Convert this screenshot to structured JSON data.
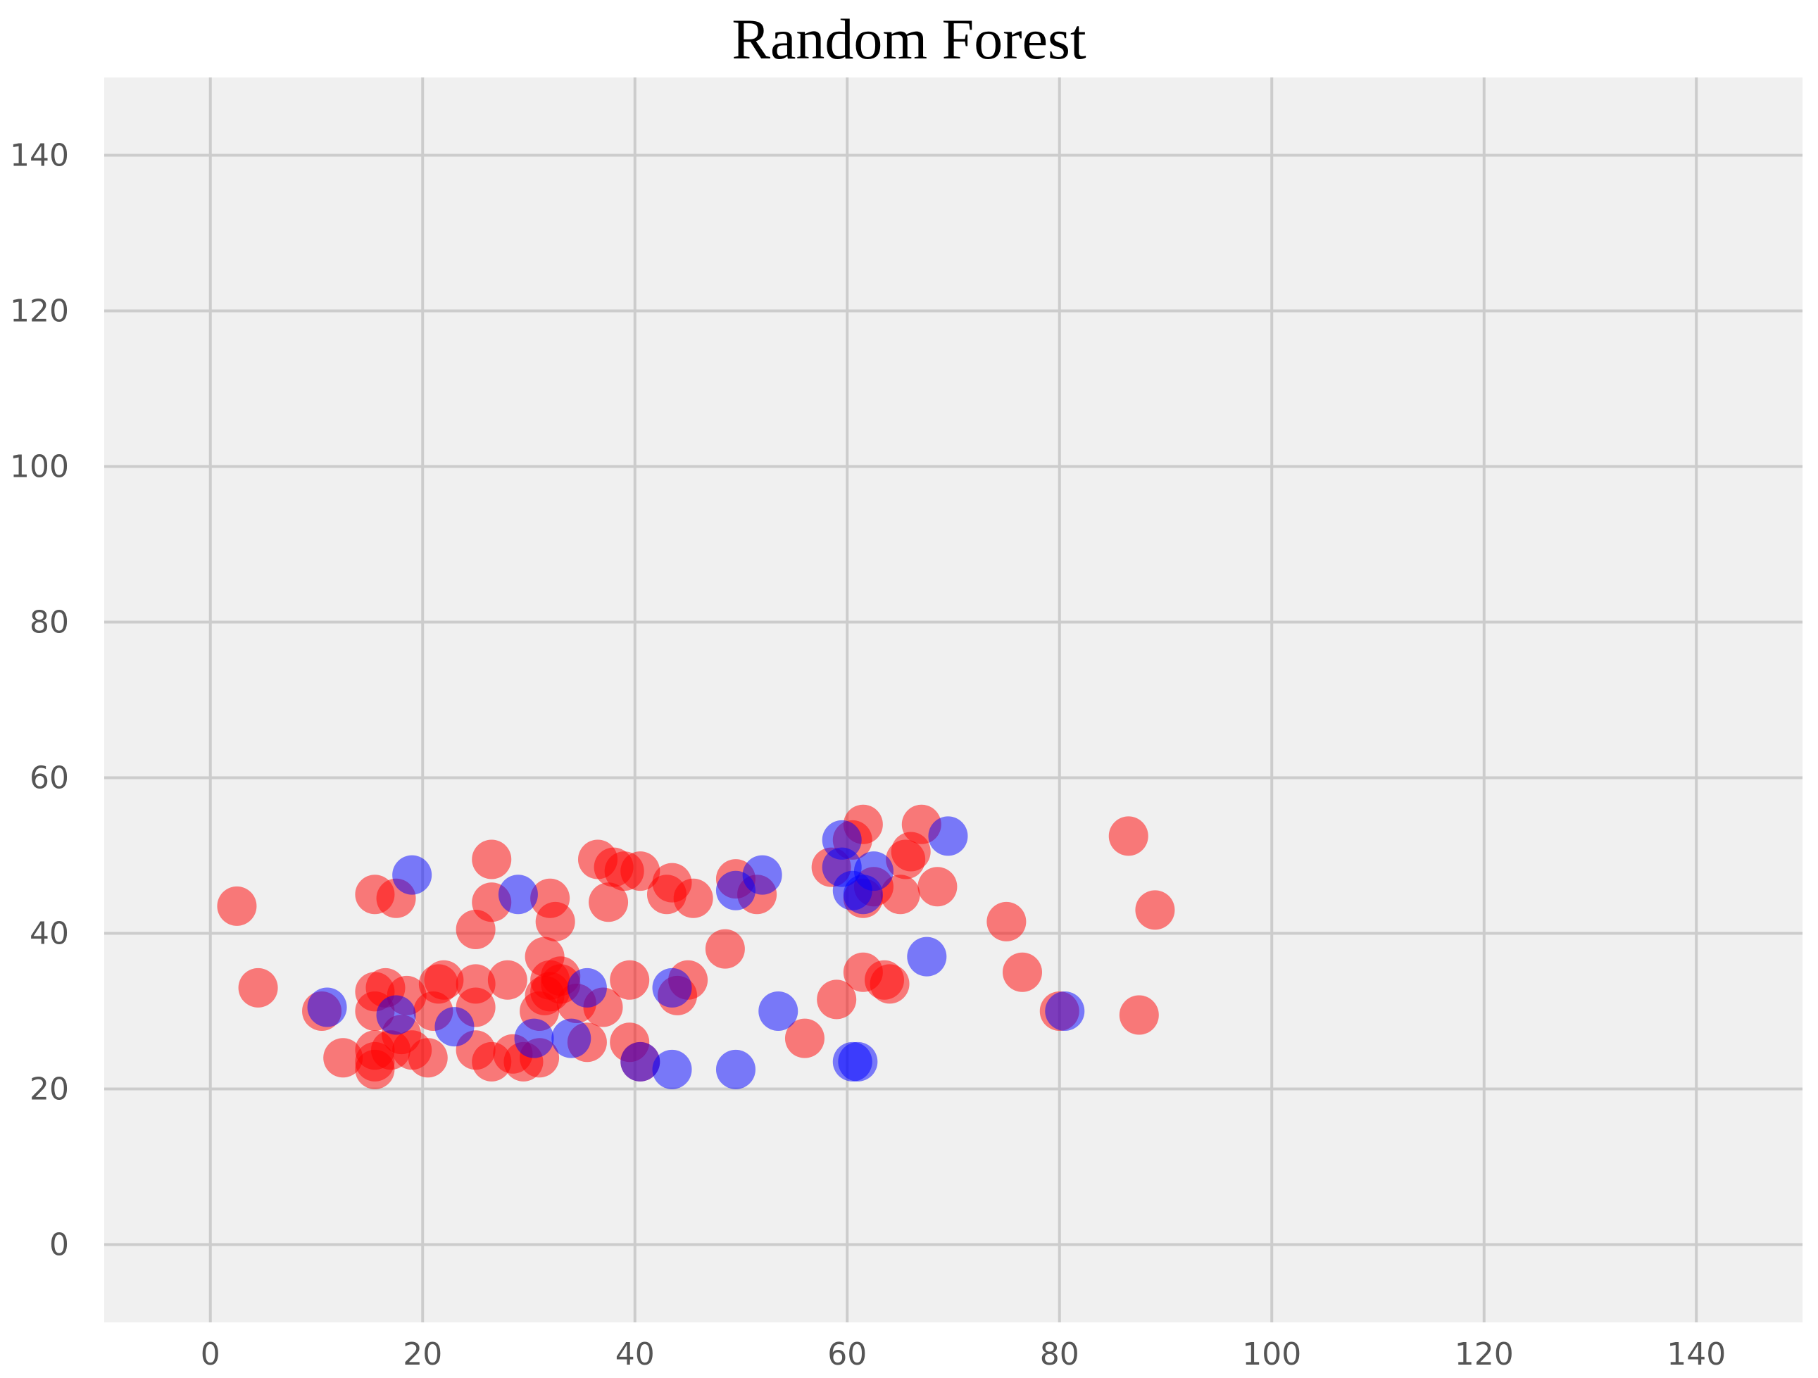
{
  "chart_data": {
    "type": "scatter",
    "title": "Random Forest",
    "xlabel": "",
    "ylabel": "",
    "xlim": [
      -10,
      150
    ],
    "ylim": [
      -10,
      150
    ],
    "xticks": [
      0,
      20,
      40,
      60,
      80,
      100,
      120,
      140
    ],
    "yticks": [
      0,
      20,
      40,
      60,
      80,
      100,
      120,
      140
    ],
    "grid": true,
    "background_color": "#f0f0f0",
    "grid_color": "#cccccc",
    "series": [
      {
        "color": "#ff0000",
        "opacity": 0.5,
        "points": [
          [
            2.5,
            43.5
          ],
          [
            4.5,
            33
          ],
          [
            10.5,
            30
          ],
          [
            12.5,
            24
          ],
          [
            15.5,
            45
          ],
          [
            15.5,
            32.5
          ],
          [
            15.5,
            30
          ],
          [
            15.5,
            25
          ],
          [
            15.5,
            23.5
          ],
          [
            15.5,
            22.5
          ],
          [
            16.5,
            33
          ],
          [
            17,
            25
          ],
          [
            17.5,
            44.5
          ],
          [
            18,
            27
          ],
          [
            18.5,
            32
          ],
          [
            19,
            25
          ],
          [
            20.5,
            24
          ],
          [
            21,
            30
          ],
          [
            21.5,
            33.5
          ],
          [
            22,
            34
          ],
          [
            25,
            40.5
          ],
          [
            25,
            33.5
          ],
          [
            25,
            30.5
          ],
          [
            25,
            25
          ],
          [
            26.5,
            49.5
          ],
          [
            26.5,
            44
          ],
          [
            26.5,
            23.5
          ],
          [
            28,
            34
          ],
          [
            28.5,
            24.5
          ],
          [
            29.5,
            23.5
          ],
          [
            31,
            30
          ],
          [
            31,
            24
          ],
          [
            31.5,
            37
          ],
          [
            31.5,
            32
          ],
          [
            32,
            44.5
          ],
          [
            32,
            34
          ],
          [
            32,
            32.5
          ],
          [
            32.5,
            41.5
          ],
          [
            33,
            33.5
          ],
          [
            33,
            34.5
          ],
          [
            34.5,
            31
          ],
          [
            35.5,
            26
          ],
          [
            36.5,
            49.5
          ],
          [
            37,
            30.5
          ],
          [
            37.5,
            44
          ],
          [
            38,
            48.5
          ],
          [
            39,
            48
          ],
          [
            39.5,
            34
          ],
          [
            39.5,
            26
          ],
          [
            40.5,
            48
          ],
          [
            40.5,
            23.5
          ],
          [
            43,
            45
          ],
          [
            43.5,
            46.5
          ],
          [
            44,
            32
          ],
          [
            45,
            34
          ],
          [
            45.5,
            44.5
          ],
          [
            48.5,
            38
          ],
          [
            49.5,
            47
          ],
          [
            51.5,
            45
          ],
          [
            56,
            26.5
          ],
          [
            58.5,
            48.5
          ],
          [
            59,
            31.5
          ],
          [
            60.5,
            52
          ],
          [
            61.5,
            54
          ],
          [
            61.5,
            44.5
          ],
          [
            61.5,
            35
          ],
          [
            62.5,
            46
          ],
          [
            63.5,
            34
          ],
          [
            64,
            33.5
          ],
          [
            65,
            45
          ],
          [
            65.5,
            49.5
          ],
          [
            66,
            50.5
          ],
          [
            67,
            54
          ],
          [
            68.5,
            46
          ],
          [
            75,
            41.5
          ],
          [
            76.5,
            35
          ],
          [
            80,
            30
          ],
          [
            86.5,
            52.5
          ],
          [
            87.5,
            29.5
          ],
          [
            89,
            43
          ]
        ]
      },
      {
        "color": "#0000ff",
        "opacity": 0.5,
        "points": [
          [
            11,
            30.5
          ],
          [
            17.5,
            29.5
          ],
          [
            19,
            47.5
          ],
          [
            23,
            28
          ],
          [
            29,
            45
          ],
          [
            30.5,
            26.5
          ],
          [
            34,
            26.5
          ],
          [
            35.5,
            33
          ],
          [
            40.5,
            23.5
          ],
          [
            43.5,
            33
          ],
          [
            43.5,
            22.5
          ],
          [
            49.5,
            45.5
          ],
          [
            49.5,
            22.5
          ],
          [
            52,
            47.5
          ],
          [
            53.5,
            30
          ],
          [
            59.5,
            52
          ],
          [
            59.5,
            48.5
          ],
          [
            60.5,
            45.5
          ],
          [
            60.5,
            23.5
          ],
          [
            61,
            23.5
          ],
          [
            61.5,
            45
          ],
          [
            62.5,
            48
          ],
          [
            67.5,
            37
          ],
          [
            69.5,
            52.5
          ],
          [
            80.5,
            30
          ]
        ]
      }
    ]
  }
}
